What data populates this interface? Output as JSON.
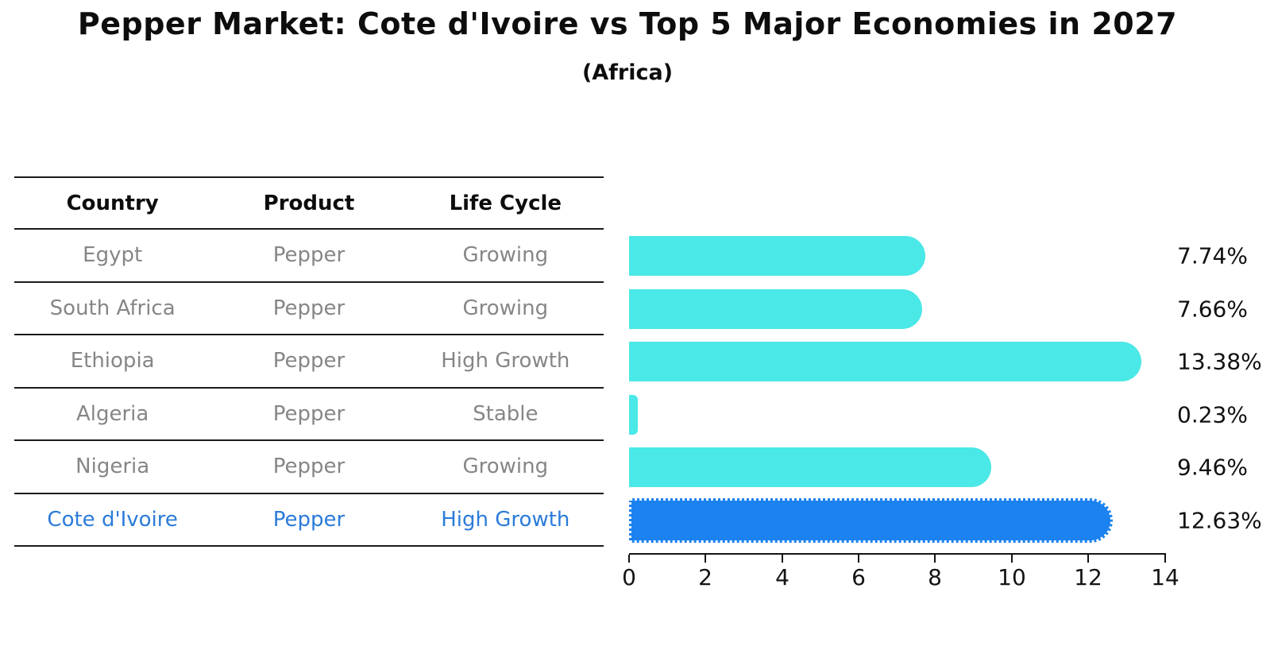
{
  "title": "Pepper Market: Cote d'Ivoire vs Top 5 Major Economies in 2027",
  "subtitle": "(Africa)",
  "colors": {
    "bar_color": "#4AE8E6",
    "highlight_bar_color": "#1B82EF",
    "highlight_text_color": "#2B7BD9",
    "table_text_gray": "#868686",
    "axis_black": "#141414"
  },
  "table": {
    "headers": [
      "Country",
      "Product",
      "Life Cycle"
    ],
    "rows": [
      {
        "country": "Egypt",
        "product": "Pepper",
        "life_cycle": "Growing",
        "highlight": false
      },
      {
        "country": "South Africa",
        "product": "Pepper",
        "life_cycle": "Growing",
        "highlight": false
      },
      {
        "country": "Ethiopia",
        "product": "Pepper",
        "life_cycle": "High Growth",
        "highlight": false
      },
      {
        "country": "Algeria",
        "product": "Pepper",
        "life_cycle": "Stable",
        "highlight": false
      },
      {
        "country": "Nigeria",
        "product": "Pepper",
        "life_cycle": "Growing",
        "highlight": false
      },
      {
        "country": "Cote d'Ivoire",
        "product": "Pepper",
        "life_cycle": "High Growth",
        "highlight": true
      }
    ]
  },
  "chart_data": {
    "type": "bar",
    "orientation": "horizontal",
    "title": "Pepper Market: Cote d'Ivoire vs Top 5 Major Economies in 2027",
    "subtitle": "(Africa)",
    "categories": [
      "Egypt",
      "South Africa",
      "Ethiopia",
      "Algeria",
      "Nigeria",
      "Cote d'Ivoire"
    ],
    "values": [
      7.74,
      7.66,
      13.38,
      0.23,
      9.46,
      12.63
    ],
    "value_labels": [
      "7.74%",
      "7.66%",
      "13.38%",
      "0.23%",
      "9.46%",
      "12.63%"
    ],
    "highlight_index": 5,
    "xlim": [
      0,
      14
    ],
    "xticks": [
      0,
      2,
      4,
      6,
      8,
      10,
      12,
      14
    ],
    "grid": false,
    "legend": false,
    "xlabel": "",
    "ylabel": ""
  }
}
